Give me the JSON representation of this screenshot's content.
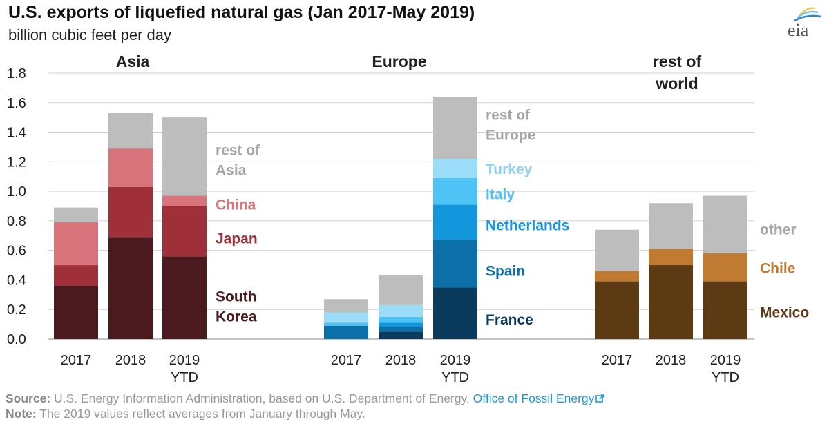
{
  "header": {
    "title": "U.S. exports of liquefied natural gas (Jan 2017-May 2019)",
    "subtitle": "billion cubic feet per day"
  },
  "logo": {
    "text": "eia",
    "icon": "eia-logo-icon",
    "colors": [
      "#f2c94c",
      "#7fc4e0",
      "#2a8bc2"
    ]
  },
  "chart_data": {
    "type": "bar",
    "stacked": true,
    "ylabel": "billion cubic feet per day",
    "ylim": [
      0,
      1.8
    ],
    "yticks": [
      "0.0",
      "0.2",
      "0.4",
      "0.6",
      "0.8",
      "1.0",
      "1.2",
      "1.4",
      "1.6",
      "1.8"
    ],
    "grid": true,
    "groups": [
      {
        "name": "Asia",
        "categories": [
          [
            "2017"
          ],
          [
            "2018"
          ],
          [
            "2019",
            "YTD"
          ]
        ],
        "series": [
          {
            "name": "South Korea",
            "label_lines": [
              "South",
              "Korea"
            ],
            "color": "#4b1a1f",
            "label_color": "#4b1a1f",
            "label_at": 0.22,
            "values": [
              0.36,
              0.69,
              0.56
            ]
          },
          {
            "name": "Japan",
            "label_lines": [
              "Japan"
            ],
            "color": "#9f3039",
            "label_color": "#9f3039",
            "label_at": 0.68,
            "values": [
              0.14,
              0.34,
              0.34
            ]
          },
          {
            "name": "China",
            "label_lines": [
              "China"
            ],
            "color": "#d9737c",
            "label_color": "#d9737c",
            "label_at": 0.91,
            "values": [
              0.29,
              0.26,
              0.07
            ]
          },
          {
            "name": "rest of Asia",
            "label_lines": [
              "rest of",
              "Asia"
            ],
            "color": "#bdbdbd",
            "label_color": "#a6a6a6",
            "label_at": 1.21,
            "values": [
              0.1,
              0.24,
              0.53
            ]
          }
        ]
      },
      {
        "name": "Europe",
        "categories": [
          [
            "2017"
          ],
          [
            "2018"
          ],
          [
            "2019",
            "YTD"
          ]
        ],
        "series": [
          {
            "name": "France",
            "label_lines": [
              "France"
            ],
            "color": "#0a3a5c",
            "label_color": "#0a3a5c",
            "label_at": 0.13,
            "values": [
              0.0,
              0.05,
              0.35
            ]
          },
          {
            "name": "Spain",
            "label_lines": [
              "Spain"
            ],
            "color": "#0d6fa8",
            "label_color": "#0d6fa8",
            "label_at": 0.46,
            "values": [
              0.09,
              0.03,
              0.32
            ]
          },
          {
            "name": "Netherlands",
            "label_lines": [
              "Netherlands"
            ],
            "color": "#1496dc",
            "label_color": "#1496dc",
            "label_at": 0.77,
            "values": [
              0.0,
              0.03,
              0.24
            ]
          },
          {
            "name": "Italy",
            "label_lines": [
              "Italy"
            ],
            "color": "#4fc3f5",
            "label_color": "#4fc3f5",
            "label_at": 0.98,
            "values": [
              0.02,
              0.04,
              0.18
            ]
          },
          {
            "name": "Turkey",
            "label_lines": [
              "Turkey"
            ],
            "color": "#9bdcf9",
            "label_color": "#8fd3f3",
            "label_at": 1.15,
            "values": [
              0.07,
              0.08,
              0.13
            ]
          },
          {
            "name": "rest of Europe",
            "label_lines": [
              "rest of",
              "Europe"
            ],
            "color": "#bdbdbd",
            "label_color": "#a6a6a6",
            "label_at": 1.45,
            "values": [
              0.09,
              0.2,
              0.42
            ]
          }
        ]
      },
      {
        "name": "rest of world",
        "name_lines": [
          "rest of",
          "world"
        ],
        "categories": [
          [
            "2017"
          ],
          [
            "2018"
          ],
          [
            "2019",
            "YTD"
          ]
        ],
        "series": [
          {
            "name": "Mexico",
            "label_lines": [
              "Mexico"
            ],
            "color": "#5c3a14",
            "label_color": "#5c3a14",
            "label_at": 0.18,
            "values": [
              0.39,
              0.5,
              0.39
            ]
          },
          {
            "name": "Chile",
            "label_lines": [
              "Chile"
            ],
            "color": "#c07a32",
            "label_color": "#c07a32",
            "label_at": 0.48,
            "values": [
              0.07,
              0.11,
              0.19
            ]
          },
          {
            "name": "other",
            "label_lines": [
              "other"
            ],
            "color": "#bdbdbd",
            "label_color": "#a6a6a6",
            "label_at": 0.74,
            "values": [
              0.28,
              0.31,
              0.39
            ]
          }
        ]
      }
    ]
  },
  "footer": {
    "source_label": "Source:",
    "source_text": " U.S. Energy Information Administration, based on U.S. Department of Energy, ",
    "source_link": "Office of Fossil Energy",
    "note_label": "Note:",
    "note_text": " The 2019 values reflect averages from January through May."
  }
}
